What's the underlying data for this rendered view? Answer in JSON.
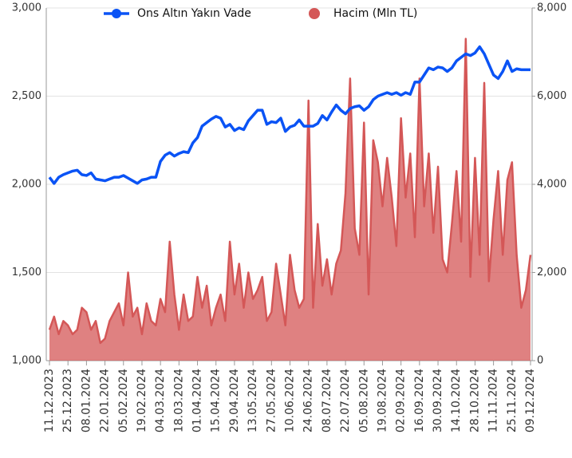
{
  "chart_data": {
    "type": "combo",
    "categories": [
      "11.12.2023",
      null,
      null,
      null,
      "25.12.2023",
      null,
      null,
      null,
      "08.01.2024",
      null,
      null,
      null,
      "22.01.2024",
      null,
      null,
      null,
      "05.02.2024",
      null,
      null,
      null,
      "19.02.2024",
      null,
      null,
      null,
      "04.03.2024",
      null,
      null,
      null,
      "18.03.2024",
      null,
      null,
      null,
      "01.04.2024",
      null,
      null,
      null,
      "15.04.2024",
      null,
      null,
      null,
      "29.04.2024",
      null,
      null,
      null,
      "13.05.2024",
      null,
      null,
      null,
      "27.05.2024",
      null,
      null,
      null,
      "10.06.2024",
      null,
      null,
      null,
      "24.06.2024",
      null,
      null,
      null,
      "08.07.2024",
      null,
      null,
      null,
      "22.07.2024",
      null,
      null,
      null,
      "05.08.2024",
      null,
      null,
      null,
      "19.08.2024",
      null,
      null,
      null,
      "02.09.2024",
      null,
      null,
      null,
      "16.09.2024",
      null,
      null,
      null,
      "30.09.2024",
      null,
      null,
      null,
      "14.10.2024",
      null,
      null,
      null,
      "28.10.2024",
      null,
      null,
      null,
      "11.11.2024",
      null,
      null,
      null,
      "25.11.2024",
      null,
      null,
      null,
      "09.12.2024"
    ],
    "series": [
      {
        "name": "Ons Altın Yakın Vade",
        "color": "#0a53f5",
        "type": "line",
        "values": [
          2040,
          2005,
          2040,
          2055,
          2065,
          2075,
          2080,
          2055,
          2050,
          2065,
          2030,
          2025,
          2020,
          2030,
          2040,
          2040,
          2050,
          2035,
          2020,
          2005,
          2025,
          2030,
          2040,
          2040,
          2130,
          2165,
          2180,
          2160,
          2175,
          2185,
          2180,
          2235,
          2265,
          2330,
          2350,
          2370,
          2385,
          2375,
          2325,
          2340,
          2305,
          2320,
          2310,
          2360,
          2390,
          2420,
          2420,
          2340,
          2355,
          2350,
          2375,
          2300,
          2325,
          2335,
          2365,
          2330,
          2330,
          2330,
          2345,
          2390,
          2365,
          2410,
          2450,
          2420,
          2400,
          2430,
          2440,
          2445,
          2420,
          2440,
          2480,
          2500,
          2510,
          2520,
          2510,
          2520,
          2505,
          2520,
          2510,
          2580,
          2580,
          2620,
          2660,
          2650,
          2665,
          2660,
          2640,
          2660,
          2700,
          2720,
          2740,
          2730,
          2745,
          2780,
          2740,
          2680,
          2620,
          2600,
          2640,
          2700,
          2640,
          2655,
          2650,
          2650,
          2650
        ]
      },
      {
        "name": "Hacim (Mln TL)",
        "color": "#d45757",
        "type": "area",
        "axis": "y2",
        "values": [
          700,
          1000,
          600,
          900,
          800,
          600,
          700,
          1200,
          1100,
          700,
          900,
          400,
          500,
          900,
          1100,
          1300,
          800,
          2000,
          1000,
          1200,
          600,
          1300,
          900,
          800,
          1400,
          1100,
          2700,
          1500,
          700,
          1500,
          900,
          1000,
          1900,
          1200,
          1700,
          800,
          1200,
          1500,
          900,
          2700,
          1500,
          2200,
          1200,
          2000,
          1400,
          1600,
          1900,
          900,
          1100,
          2200,
          1500,
          800,
          2400,
          1600,
          1200,
          1400,
          5900,
          1200,
          3100,
          1700,
          2300,
          1500,
          2200,
          2500,
          3800,
          6400,
          3000,
          2400,
          5400,
          1500,
          5000,
          4500,
          3500,
          4600,
          3700,
          2600,
          5500,
          3700,
          4700,
          2800,
          6400,
          3500,
          4700,
          2900,
          4400,
          2300,
          2000,
          3100,
          4300,
          2700,
          7300,
          1900,
          4600,
          2400,
          6300,
          1800,
          3200,
          4300,
          2400,
          4100,
          4500,
          2400,
          1200,
          1600,
          2400
        ]
      }
    ],
    "ylim": [
      1000,
      3000
    ],
    "yticks": [
      {
        "value": 1000,
        "label": "1,000"
      },
      {
        "value": 1500,
        "label": "1,500"
      },
      {
        "value": 2000,
        "label": "2,000"
      },
      {
        "value": 2500,
        "label": "2,500"
      },
      {
        "value": 3000,
        "label": "3,000"
      }
    ],
    "y2lim": [
      0,
      8000
    ],
    "y2ticks": [
      0,
      {
        "value": 2000,
        "label": "2,000"
      },
      {
        "value": 4000,
        "label": "4,000"
      },
      {
        "value": 6000,
        "label": "6,000"
      },
      {
        "value": 8000,
        "label": "8,000"
      }
    ],
    "grid": true
  }
}
